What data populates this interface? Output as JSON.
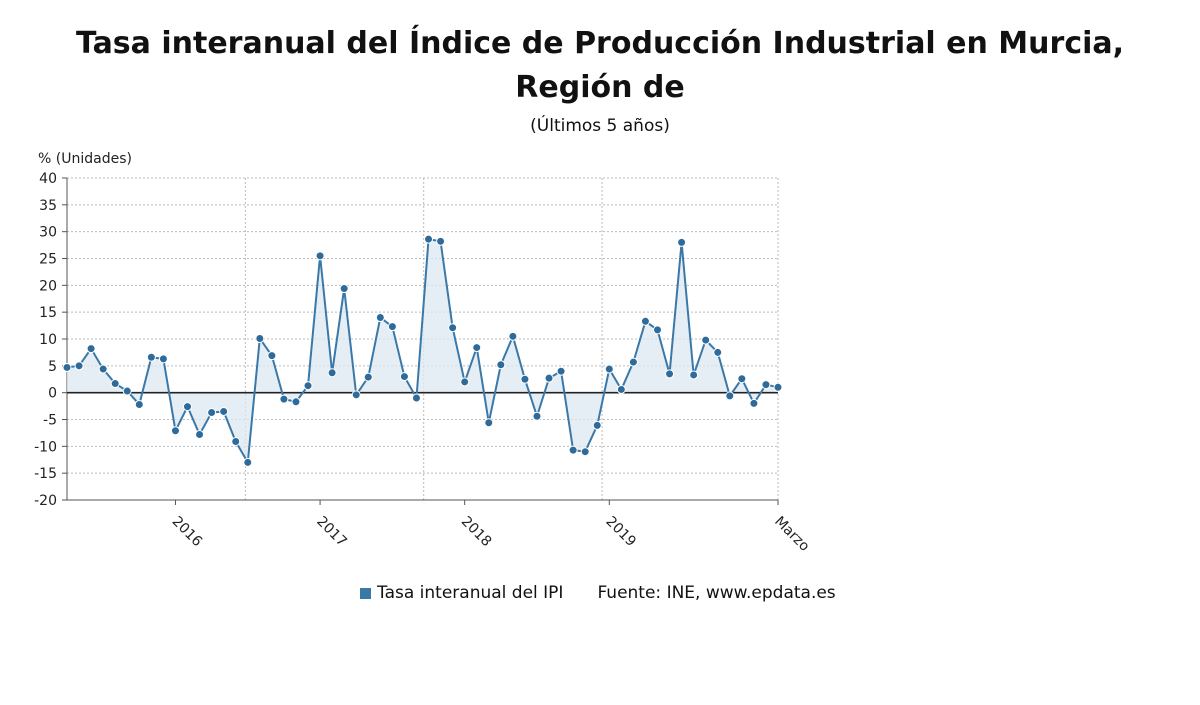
{
  "chart_data": {
    "type": "area",
    "title_line1": "Tasa interanual del Índice de Producción Industrial en Murcia,",
    "title_line2": "Región de",
    "subtitle": "(Últimos 5 años)",
    "ylabel": "% (Unidades)",
    "ylim": [
      -20,
      40
    ],
    "yticks": [
      40,
      35,
      30,
      25,
      20,
      15,
      10,
      5,
      0,
      -5,
      -10,
      -15,
      -20
    ],
    "xtick_labels": [
      "2016",
      "2017",
      "2018",
      "2019",
      "Marzo"
    ],
    "grid": true,
    "legend_position": "bottom",
    "colors": {
      "line": "#3a78a8",
      "fill": "#dde8f2",
      "point": "#2f6b9a",
      "zero_line": "#222222",
      "grid": "#bbbbbb"
    },
    "series": [
      {
        "name": "Tasa interanual del IPI",
        "start": "2015-04",
        "end": "2020-03",
        "values": [
          4.7,
          5.0,
          8.2,
          4.4,
          1.7,
          0.3,
          -2.2,
          6.6,
          6.3,
          -7.1,
          -2.6,
          -7.8,
          -3.7,
          -3.5,
          -9.1,
          -13.0,
          10.1,
          6.9,
          -1.2,
          -1.7,
          1.3,
          25.5,
          3.7,
          19.4,
          -0.4,
          2.9,
          14.0,
          12.3,
          3.0,
          -1.0,
          28.6,
          28.2,
          12.1,
          2.0,
          8.4,
          -5.6,
          5.2,
          10.5,
          2.5,
          -4.4,
          2.7,
          4.0,
          -10.7,
          -11.0,
          -6.1,
          4.4,
          0.6,
          5.7,
          13.3,
          11.7,
          3.5,
          28.0,
          3.3,
          9.8,
          7.5,
          -0.6,
          2.6,
          -2.0,
          1.5,
          1.0
        ]
      }
    ]
  },
  "legend": {
    "series_label": "Tasa interanual del IPI",
    "source": "Fuente: INE, www.epdata.es"
  }
}
